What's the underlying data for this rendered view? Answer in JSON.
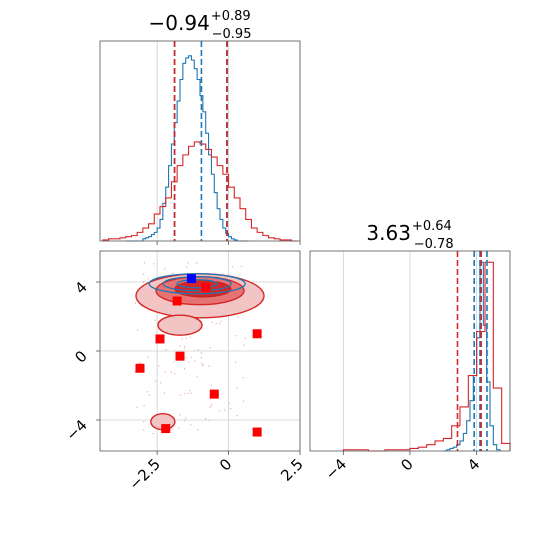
{
  "chart_data": [
    {
      "type": "histogram",
      "panel": "marginal-param-1",
      "title": {
        "main": "−0.94",
        "sup": "+0.89",
        "sub": "−0.95"
      },
      "xlim": [
        -4.5,
        2.5
      ],
      "grid": true,
      "series": [
        {
          "color": "#1f77b4",
          "bins_x": [
            -3.6,
            -3.5,
            -3.4,
            -3.3,
            -3.2,
            -3.1,
            -3.0,
            -2.9,
            -2.8,
            -2.7,
            -2.6,
            -2.5,
            -2.4,
            -2.3,
            -2.2,
            -2.1,
            -2.0,
            -1.9,
            -1.8,
            -1.7,
            -1.6,
            -1.5,
            -1.4,
            -1.3,
            -1.2,
            -1.1,
            -1.0,
            -0.9,
            -0.8,
            -0.7,
            -0.6,
            -0.5,
            -0.4,
            -0.3,
            -0.2,
            -0.1,
            0.0,
            0.1,
            0.2,
            0.3,
            0.4,
            0.5,
            0.6
          ],
          "counts": [
            0,
            0,
            0,
            0,
            0,
            0,
            2,
            3,
            4,
            6,
            8,
            12,
            20,
            35,
            50,
            70,
            90,
            110,
            130,
            150,
            165,
            170,
            172,
            168,
            160,
            150,
            135,
            120,
            100,
            80,
            62,
            45,
            30,
            20,
            12,
            7,
            4,
            2,
            1,
            0,
            0,
            0,
            0
          ],
          "vlines": [
            -1.89,
            -0.95,
            -0.06
          ],
          "vline_style": "dashed"
        },
        {
          "color": "#d62728",
          "bins_x": [
            -4.4,
            -4.2,
            -4.0,
            -3.8,
            -3.6,
            -3.4,
            -3.2,
            -3.0,
            -2.8,
            -2.6,
            -2.4,
            -2.2,
            -2.0,
            -1.8,
            -1.6,
            -1.4,
            -1.2,
            -1.0,
            -0.8,
            -0.6,
            -0.4,
            -0.2,
            0.0,
            0.2,
            0.4,
            0.6,
            0.8,
            1.0,
            1.2,
            1.4,
            1.6,
            1.8,
            2.0,
            2.2
          ],
          "counts": [
            1,
            2,
            2,
            3,
            4,
            5,
            8,
            12,
            16,
            25,
            32,
            40,
            55,
            70,
            80,
            88,
            92,
            90,
            85,
            78,
            70,
            62,
            50,
            40,
            30,
            20,
            12,
            8,
            5,
            3,
            2,
            1,
            1,
            0
          ],
          "vlines": [
            -1.89,
            -0.05
          ],
          "vline_style": "dashed"
        }
      ]
    },
    {
      "type": "contour",
      "panel": "joint",
      "xlim": [
        -4.5,
        2.5
      ],
      "ylim": [
        -5.8,
        5.8
      ],
      "x_ticks": [
        -2.5,
        0.0,
        2.5
      ],
      "y_ticks": [
        -4,
        0,
        4
      ],
      "grid": true,
      "contour_series": [
        {
          "color": "#d62728",
          "center": [
            -1.0,
            3.6
          ],
          "levels": 3
        },
        {
          "color": "#1f77b4",
          "center": [
            -1.1,
            3.9
          ],
          "levels": 3
        }
      ],
      "red_scatter_points": [
        [
          -1.8,
          2.9
        ],
        [
          -0.8,
          3.7
        ],
        [
          -2.4,
          0.7
        ],
        [
          -1.7,
          -0.3
        ],
        [
          -3.1,
          -1.0
        ],
        [
          1.0,
          1.0
        ],
        [
          -0.5,
          -2.5
        ],
        [
          -2.2,
          -4.5
        ],
        [
          1.0,
          -4.7
        ]
      ],
      "blue_marker": [
        -1.3,
        4.2
      ]
    },
    {
      "type": "histogram",
      "panel": "marginal-param-2",
      "title": {
        "main": "3.63",
        "sup": "+0.64",
        "sub": "−0.78"
      },
      "xlim": [
        -6.0,
        6.0
      ],
      "x_ticks": [
        -4,
        0,
        4
      ],
      "grid": true,
      "series": [
        {
          "color": "#1f77b4",
          "bins_x": [
            2.0,
            2.2,
            2.4,
            2.6,
            2.8,
            3.0,
            3.2,
            3.4,
            3.6,
            3.8,
            4.0,
            4.2,
            4.4,
            4.6,
            4.8,
            5.0,
            5.2
          ],
          "counts": [
            0,
            1,
            2,
            3,
            5,
            8,
            14,
            24,
            40,
            60,
            90,
            150,
            100,
            55,
            20,
            5,
            1
          ],
          "vlines": [
            3.85,
            4.2,
            4.62
          ],
          "vline_style": "dashed"
        },
        {
          "color": "#d62728",
          "bins_x": [
            -4.0,
            -3.5,
            -3.0,
            -2.5,
            -2.0,
            -1.5,
            -1.0,
            -0.5,
            0.0,
            0.5,
            1.0,
            1.5,
            2.0,
            2.5,
            3.0,
            3.5,
            4.0,
            4.5,
            5.0,
            5.5
          ],
          "counts": [
            1,
            1,
            1,
            0,
            0,
            1,
            1,
            1,
            2,
            3,
            5,
            8,
            10,
            20,
            35,
            60,
            95,
            150,
            50,
            6
          ],
          "vlines": [
            2.85,
            4.27
          ],
          "vline_style": "dashed"
        }
      ]
    }
  ]
}
